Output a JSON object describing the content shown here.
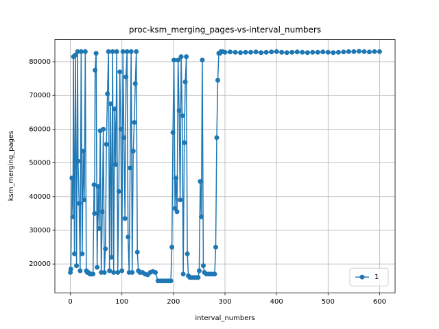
{
  "chart_data": {
    "type": "line",
    "title": "proc-ksm_merging_pages-vs-interval_numbers",
    "x_label": "interval_numbers",
    "y_label": "ksm_merging_pages",
    "x": [
      0,
      1,
      3,
      5,
      6,
      8,
      10,
      12,
      14,
      15,
      17,
      19,
      21,
      23,
      25,
      27,
      29,
      31,
      33,
      35,
      38,
      41,
      44,
      46,
      47,
      48,
      50,
      52,
      54,
      56,
      58,
      60,
      62,
      64,
      66,
      68,
      70,
      72,
      74,
      76,
      78,
      80,
      82,
      84,
      86,
      88,
      90,
      92,
      94,
      96,
      98,
      100,
      102,
      104,
      106,
      108,
      110,
      112,
      114,
      116,
      118,
      120,
      122,
      124,
      126,
      128,
      130,
      132,
      135,
      140,
      145,
      150,
      155,
      160,
      165,
      170,
      175,
      180,
      185,
      190,
      195,
      197,
      199,
      201,
      203,
      205,
      207,
      209,
      211,
      213,
      215,
      217,
      219,
      221,
      223,
      225,
      227,
      229,
      232,
      236,
      240,
      244,
      248,
      250,
      252,
      254,
      256,
      258,
      260,
      264,
      268,
      272,
      276,
      280,
      282,
      284,
      286,
      288,
      290,
      292,
      295,
      300,
      310,
      320,
      330,
      340,
      350,
      360,
      370,
      380,
      390,
      400,
      410,
      420,
      430,
      440,
      450,
      460,
      470,
      480,
      490,
      500,
      510,
      520,
      530,
      540,
      550,
      560,
      570,
      580,
      590,
      600
    ],
    "series": [
      {
        "name": "1",
        "color": "#1f77b4",
        "values": [
          17500,
          18500,
          45500,
          34000,
          81500,
          23000,
          82000,
          19500,
          83000,
          50500,
          38000,
          18000,
          83000,
          23000,
          53500,
          39000,
          83000,
          18000,
          17500,
          17500,
          17000,
          17000,
          17000,
          43500,
          35000,
          77500,
          82500,
          19000,
          43000,
          30500,
          59500,
          17500,
          35500,
          60000,
          17500,
          24500,
          55500,
          70500,
          83000,
          18000,
          67500,
          22000,
          83000,
          17500,
          66000,
          49500,
          83000,
          17500,
          41500,
          77000,
          60000,
          18000,
          83000,
          57500,
          33500,
          75500,
          83000,
          28000,
          17500,
          48500,
          83000,
          17500,
          53500,
          62000,
          73500,
          83000,
          23500,
          18000,
          17500,
          17500,
          17000,
          16800,
          17500,
          17800,
          17500,
          15000,
          15000,
          15000,
          15000,
          15000,
          15000,
          25000,
          59000,
          80500,
          36500,
          45500,
          35500,
          80500,
          65500,
          39000,
          81500,
          64000,
          17000,
          56000,
          74000,
          81500,
          23000,
          16500,
          16000,
          16000,
          16000,
          16000,
          16000,
          18000,
          44500,
          34000,
          80500,
          19500,
          17500,
          17000,
          17000,
          17000,
          17000,
          17000,
          25000,
          57500,
          74500,
          82500,
          82500,
          83000,
          83000,
          82800,
          82900,
          82800,
          82700,
          82800,
          82800,
          82900,
          82700,
          82800,
          82900,
          83000,
          82800,
          82700,
          82800,
          82900,
          82800,
          82700,
          82800,
          82800,
          82900,
          82800,
          82700,
          82800,
          82900,
          83000,
          83000,
          83100,
          83000,
          82900,
          83000,
          83000
        ]
      }
    ],
    "xlim": [
      -30,
      630
    ],
    "ylim": [
      11450,
      86600
    ],
    "xticks": [
      0,
      100,
      200,
      300,
      400,
      500,
      600
    ],
    "yticks": [
      20000,
      30000,
      40000,
      50000,
      60000,
      70000,
      80000
    ],
    "grid": true,
    "legend": "lower right"
  }
}
